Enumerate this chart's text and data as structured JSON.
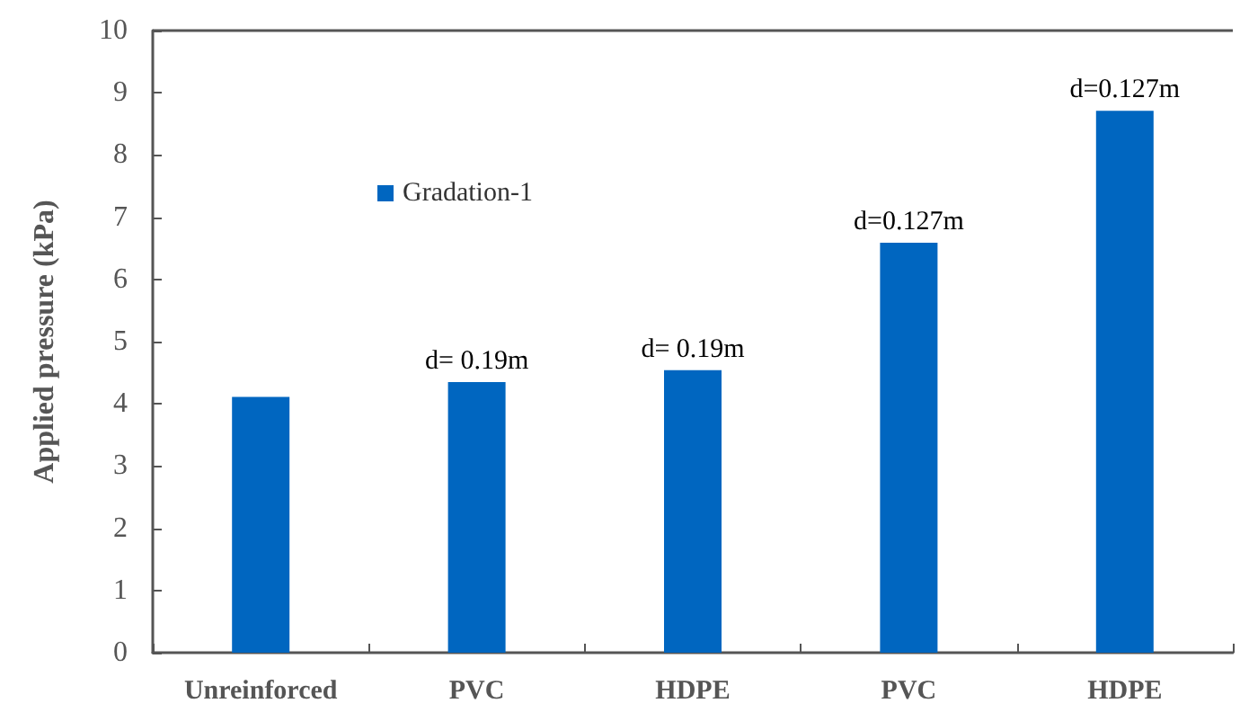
{
  "chart_data": {
    "type": "bar",
    "ylabel": "Applied pressure (kPa)",
    "categories": [
      "Unreinforced",
      "PVC",
      "HDPE",
      "PVC",
      "HDPE"
    ],
    "series": [
      {
        "name": "Gradation-1",
        "color": "#0066c0",
        "values": [
          4.11,
          4.35,
          4.54,
          6.59,
          8.71
        ]
      }
    ],
    "ylim": [
      0,
      10
    ],
    "yticks": [
      0,
      1,
      2,
      3,
      4,
      5,
      6,
      7,
      8,
      9,
      10
    ],
    "grid": false,
    "legend": "top left",
    "annotations": [
      {
        "text": "d= 0.19m",
        "x": "PVC",
        "y": 4.35
      },
      {
        "text": "d= 0.19m",
        "x": "HDPE",
        "y": 4.54
      },
      {
        "text": "d=0.127m",
        "y": 6.59
      },
      {
        "text": "d=0.127m",
        "y": 8.71
      }
    ]
  }
}
